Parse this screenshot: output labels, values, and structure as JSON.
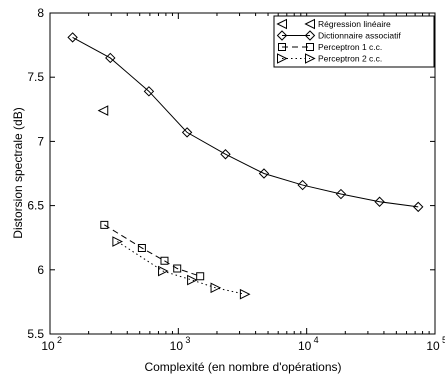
{
  "chart_data": {
    "type": "line",
    "title": "",
    "xlabel": "Complexité (en nombre d'opérations)",
    "ylabel": "Distorsion spectrale (dB)",
    "xscale": "log",
    "xlim": [
      100,
      100000
    ],
    "ylim": [
      5.5,
      8
    ],
    "x_ticks": [
      {
        "base": "10",
        "exp": "2"
      },
      {
        "base": "10",
        "exp": "3"
      },
      {
        "base": "10",
        "exp": "4"
      },
      {
        "base": "10",
        "exp": "5"
      }
    ],
    "y_ticks": [
      "5.5",
      "6",
      "6.5",
      "7",
      "7.5",
      "8"
    ],
    "legend_position": "top-right",
    "series": [
      {
        "name": "Régression linéaire",
        "marker": "triangle-left",
        "line": "none",
        "x": [
          260
        ],
        "y": [
          7.24
        ]
      },
      {
        "name": "Dictionnaire associatif",
        "marker": "diamond",
        "line": "solid",
        "x": [
          150,
          295,
          590,
          1170,
          2330,
          4650,
          9300,
          18500,
          37000,
          74000
        ],
        "y": [
          7.81,
          7.65,
          7.39,
          7.07,
          6.9,
          6.75,
          6.66,
          6.59,
          6.53,
          6.49
        ]
      },
      {
        "name": "Perceptron 1 c.c.",
        "marker": "square",
        "line": "dashed",
        "x": [
          265,
          520,
          780,
          980,
          1480
        ],
        "y": [
          6.35,
          6.17,
          6.07,
          6.01,
          5.95
        ]
      },
      {
        "name": "Perceptron 2 c.c.",
        "marker": "triangle-right",
        "line": "dotted",
        "x": [
          335,
          760,
          1280,
          1950,
          3300
        ],
        "y": [
          6.22,
          5.99,
          5.92,
          5.86,
          5.81
        ]
      }
    ]
  }
}
